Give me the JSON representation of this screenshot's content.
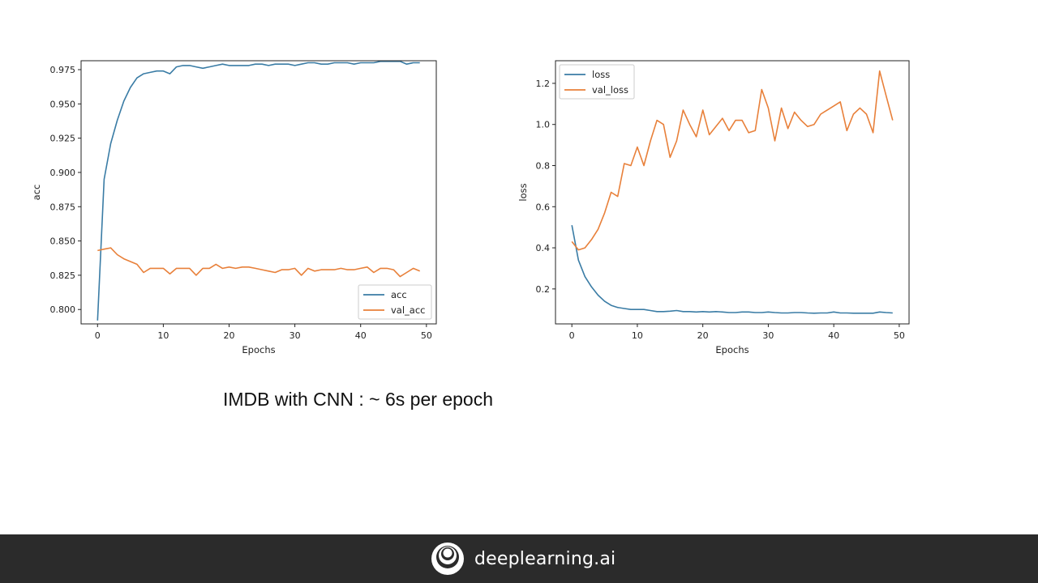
{
  "caption": "IMDB with CNN : ~ 6s per epoch",
  "footer": {
    "brand": "deeplearning.ai",
    "logo_icon": "deeplearning-logo-icon"
  },
  "colors": {
    "blue": "#3a7ca5",
    "orange": "#e8803a",
    "footer_bg": "#2b2b2b"
  },
  "chart_data": [
    {
      "type": "line",
      "xlabel": "Epochs",
      "ylabel": "acc",
      "xlim": [
        -2.5,
        51.5
      ],
      "ylim": [
        0.7895,
        0.9815
      ],
      "xticks": [
        0,
        10,
        20,
        30,
        40,
        50
      ],
      "xtick_labels": [
        "0",
        "10",
        "20",
        "30",
        "40",
        "50"
      ],
      "yticks": [
        0.8,
        0.825,
        0.85,
        0.875,
        0.9,
        0.925,
        0.95,
        0.975
      ],
      "ytick_labels": [
        "0.800",
        "0.825",
        "0.850",
        "0.875",
        "0.900",
        "0.925",
        "0.950",
        "0.975"
      ],
      "grid": false,
      "legend": "lower-right",
      "x": [
        0,
        1,
        2,
        3,
        4,
        5,
        6,
        7,
        8,
        9,
        10,
        11,
        12,
        13,
        14,
        15,
        16,
        17,
        18,
        19,
        20,
        21,
        22,
        23,
        24,
        25,
        26,
        27,
        28,
        29,
        30,
        31,
        32,
        33,
        34,
        35,
        36,
        37,
        38,
        39,
        40,
        41,
        42,
        43,
        44,
        45,
        46,
        47,
        48,
        49
      ],
      "series": [
        {
          "name": "acc",
          "color": "#3a7ca5",
          "values": [
            0.792,
            0.895,
            0.921,
            0.938,
            0.952,
            0.962,
            0.969,
            0.972,
            0.973,
            0.974,
            0.974,
            0.972,
            0.977,
            0.978,
            0.978,
            0.977,
            0.976,
            0.977,
            0.978,
            0.979,
            0.978,
            0.978,
            0.978,
            0.978,
            0.979,
            0.979,
            0.978,
            0.979,
            0.979,
            0.979,
            0.978,
            0.979,
            0.98,
            0.98,
            0.979,
            0.979,
            0.98,
            0.98,
            0.98,
            0.979,
            0.98,
            0.98,
            0.98,
            0.981,
            0.981,
            0.981,
            0.981,
            0.979,
            0.98,
            0.98
          ]
        },
        {
          "name": "val_acc",
          "color": "#e8803a",
          "values": [
            0.843,
            0.844,
            0.845,
            0.84,
            0.837,
            0.835,
            0.833,
            0.827,
            0.83,
            0.83,
            0.83,
            0.826,
            0.83,
            0.83,
            0.83,
            0.825,
            0.83,
            0.83,
            0.833,
            0.83,
            0.831,
            0.83,
            0.831,
            0.831,
            0.83,
            0.829,
            0.828,
            0.827,
            0.829,
            0.829,
            0.83,
            0.825,
            0.83,
            0.828,
            0.829,
            0.829,
            0.829,
            0.83,
            0.829,
            0.829,
            0.83,
            0.831,
            0.827,
            0.83,
            0.83,
            0.829,
            0.824,
            0.827,
            0.83,
            0.828
          ]
        }
      ]
    },
    {
      "type": "line",
      "xlabel": "Epochs",
      "ylabel": "loss",
      "xlim": [
        -2.5,
        51.5
      ],
      "ylim": [
        0.03,
        1.31
      ],
      "xticks": [
        0,
        10,
        20,
        30,
        40,
        50
      ],
      "xtick_labels": [
        "0",
        "10",
        "20",
        "30",
        "40",
        "50"
      ],
      "yticks": [
        0.2,
        0.4,
        0.6,
        0.8,
        1.0,
        1.2
      ],
      "ytick_labels": [
        "0.2",
        "0.4",
        "0.6",
        "0.8",
        "1.0",
        "1.2"
      ],
      "grid": false,
      "legend": "upper-left",
      "x": [
        0,
        1,
        2,
        3,
        4,
        5,
        6,
        7,
        8,
        9,
        10,
        11,
        12,
        13,
        14,
        15,
        16,
        17,
        18,
        19,
        20,
        21,
        22,
        23,
        24,
        25,
        26,
        27,
        28,
        29,
        30,
        31,
        32,
        33,
        34,
        35,
        36,
        37,
        38,
        39,
        40,
        41,
        42,
        43,
        44,
        45,
        46,
        47,
        48,
        49
      ],
      "series": [
        {
          "name": "loss",
          "color": "#3a7ca5",
          "values": [
            0.51,
            0.34,
            0.26,
            0.21,
            0.17,
            0.14,
            0.12,
            0.11,
            0.105,
            0.1,
            0.1,
            0.1,
            0.095,
            0.09,
            0.09,
            0.092,
            0.095,
            0.09,
            0.09,
            0.088,
            0.09,
            0.088,
            0.09,
            0.088,
            0.085,
            0.085,
            0.088,
            0.088,
            0.085,
            0.085,
            0.088,
            0.085,
            0.083,
            0.083,
            0.085,
            0.085,
            0.083,
            0.082,
            0.083,
            0.083,
            0.088,
            0.083,
            0.083,
            0.082,
            0.082,
            0.082,
            0.082,
            0.088,
            0.085,
            0.083
          ]
        },
        {
          "name": "val_loss",
          "color": "#e8803a",
          "values": [
            0.43,
            0.39,
            0.4,
            0.44,
            0.49,
            0.57,
            0.67,
            0.65,
            0.81,
            0.8,
            0.89,
            0.8,
            0.92,
            1.02,
            1.0,
            0.84,
            0.92,
            1.07,
            1.0,
            0.94,
            1.07,
            0.95,
            0.99,
            1.03,
            0.97,
            1.02,
            1.02,
            0.96,
            0.97,
            1.17,
            1.08,
            0.92,
            1.08,
            0.98,
            1.06,
            1.02,
            0.99,
            1.0,
            1.05,
            1.07,
            1.09,
            1.11,
            0.97,
            1.05,
            1.08,
            1.05,
            0.96,
            1.26,
            1.14,
            1.02
          ]
        }
      ]
    }
  ]
}
